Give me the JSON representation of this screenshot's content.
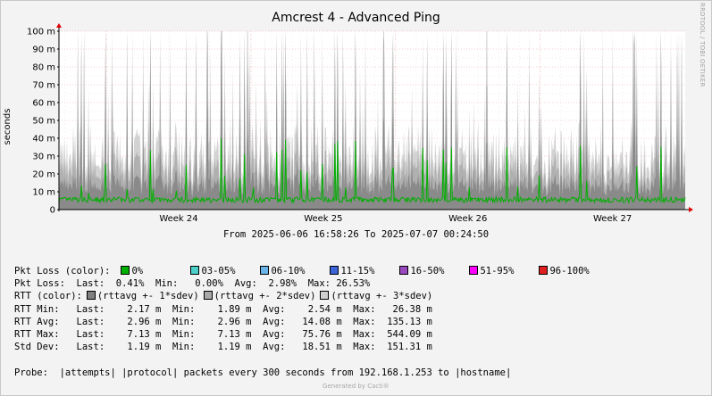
{
  "chart_data": {
    "type": "area",
    "title": "Amcrest 4 - Advanced Ping",
    "ylabel": "seconds",
    "ylim": [
      0,
      0.1
    ],
    "yticks": [
      "0",
      "10 m",
      "20 m",
      "30 m",
      "40 m",
      "50 m",
      "60 m",
      "70 m",
      "80 m",
      "90 m",
      "100 m"
    ],
    "x_start": "2025-06-06 16:58:26",
    "x_end": "2025-07-07 00:24:50",
    "xticks": [
      {
        "label": "Week 24",
        "at": "2025-06-09"
      },
      {
        "label": "Week 25",
        "at": "2025-06-16"
      },
      {
        "label": "Week 26",
        "at": "2025-06-23"
      },
      {
        "label": "Week 27",
        "at": "2025-06-30"
      }
    ],
    "period_label": "From 2025-06-06 16:58:26 To 2025-07-07 00:24:50",
    "watermark": "RRDTOOL / TOBI OETIKER",
    "colors": {
      "band3": "#d2d2d2",
      "band2": "#b0b0b0",
      "band1": "#8a8a8a",
      "rtt_line": "#00b000",
      "loss_light": "#4ad0c8",
      "grid": "#e9a0a0",
      "axis": "#000000"
    }
  },
  "legend": {
    "pkt_loss_color_label": "Pkt Loss (color):",
    "loss_colors": [
      {
        "label": "0%",
        "color": "#00b000"
      },
      {
        "label": "03-05%",
        "color": "#4ad0c8"
      },
      {
        "label": "06-10%",
        "color": "#68b4e8"
      },
      {
        "label": "11-15%",
        "color": "#3a64d8"
      },
      {
        "label": "16-50%",
        "color": "#9a48c0"
      },
      {
        "label": "51-95%",
        "color": "#ff00ff"
      },
      {
        "label": "96-100%",
        "color": "#e02020"
      }
    ],
    "pkt_loss_stats": "Pkt Loss:  Last:  0.41%  Min:   0.00%  Avg:  2.98%  Max: 26.53%",
    "rtt_color_label": "RTT (color):",
    "rtt_colors": [
      {
        "label": "(rttavg +- 1*sdev)",
        "color": "#808080"
      },
      {
        "label": "(rttavg +- 2*sdev)",
        "color": "#a8a8a8"
      },
      {
        "label": "(rttavg +- 3*sdev)",
        "color": "#cfcfcf"
      }
    ],
    "stats_rows": [
      "RTT Min:   Last:    2.17 m  Min:    1.89 m  Avg:    2.54 m  Max:   26.38 m",
      "RTT Avg:   Last:    2.96 m  Min:    2.96 m  Avg:   14.08 m  Max:  135.13 m",
      "RTT Max:   Last:    7.13 m  Min:    7.13 m  Avg:   75.76 m  Max:  544.09 m",
      "Std Dev:   Last:    1.19 m  Min:    1.19 m  Avg:   18.51 m  Max:  151.31 m"
    ],
    "probe": "Probe:  |attempts| |protocol| packets every 300 seconds from 192.168.1.253 to |hostname|"
  },
  "footer": "Generated by Cacti®"
}
